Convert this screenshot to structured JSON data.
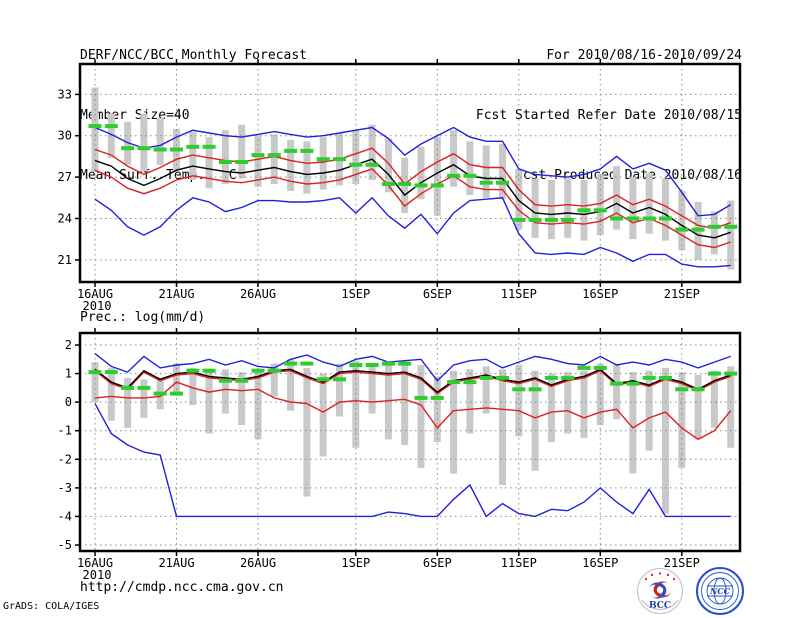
{
  "header": {
    "title": "DERF/NCC/BCC Monthly Forecast",
    "member_size": "Member Size=40",
    "for_range": "For 2010/08/16-2010/09/24",
    "refer_date": "Fcst Started Refer Date 2010/08/15",
    "produced_date": "Fcst Produced Date 2010/08/16"
  },
  "footer": {
    "url": "http://cmdp.ncc.cma.gov.cn",
    "grads_credit": "GrADS: COLA/IGES",
    "bcc_label": "BCC",
    "ncc_label": "NCC"
  },
  "colors": {
    "blue": "#2020dd",
    "red": "#dd2020",
    "black": "#000000",
    "green": "#2ecc2e",
    "bar_gray": "#c9c9c9",
    "grid_gray": "#8a8a8a",
    "frame": "#000000",
    "logo_navy": "#1a3f9e",
    "logo_red": "#cc2222"
  },
  "chart_data": [
    {
      "type": "line",
      "name": "mean-surface-temperature",
      "title": "Mean Surf. Temp.: °C",
      "x_sub_label": "2010",
      "x_tick_labels": [
        "16AUG",
        "21AUG",
        "26AUG",
        "1SEP",
        "6SEP",
        "11SEP",
        "16SEP",
        "21SEP"
      ],
      "x_tick_positions": [
        0,
        5,
        10,
        16,
        21,
        26,
        31,
        36
      ],
      "n_points": 40,
      "ylim": [
        19.4,
        35.2
      ],
      "y_ticks": [
        21,
        24,
        27,
        30,
        33
      ],
      "y_tick_labels": [
        "21",
        "24",
        "27",
        "30",
        "33"
      ],
      "grid": true,
      "legend": "none",
      "series": [
        {
          "name": "upper-spread",
          "color": "red",
          "values": [
            29.0,
            28.6,
            27.8,
            27.2,
            27.7,
            28.3,
            28.6,
            28.4,
            28.2,
            28.1,
            28.3,
            28.5,
            28.2,
            28.0,
            28.1,
            28.3,
            28.7,
            29.1,
            28.0,
            26.5,
            27.4,
            28.1,
            28.7,
            27.9,
            27.7,
            27.7,
            26.1,
            25.0,
            24.9,
            25.0,
            24.9,
            25.1,
            25.7,
            25.0,
            25.4,
            24.9,
            24.2,
            23.5,
            23.3,
            23.7
          ]
        },
        {
          "name": "lower-spread",
          "color": "red",
          "values": [
            27.5,
            27.0,
            26.2,
            25.8,
            26.2,
            26.8,
            27.1,
            26.9,
            26.7,
            26.6,
            26.8,
            27.0,
            26.7,
            26.5,
            26.6,
            26.8,
            27.2,
            27.6,
            26.4,
            24.9,
            25.8,
            26.5,
            27.1,
            26.3,
            26.1,
            26.1,
            24.6,
            23.7,
            23.6,
            23.7,
            23.6,
            23.8,
            24.4,
            23.7,
            24.0,
            23.5,
            22.8,
            22.1,
            21.9,
            22.3
          ]
        },
        {
          "name": "ensemble-max",
          "color": "blue",
          "values": [
            30.6,
            30.1,
            29.5,
            29.1,
            29.3,
            29.9,
            30.4,
            30.2,
            30.0,
            29.9,
            30.1,
            30.3,
            30.1,
            29.9,
            30.0,
            30.2,
            30.4,
            30.6,
            29.8,
            28.6,
            29.4,
            30.0,
            30.6,
            29.9,
            29.6,
            29.6,
            27.6,
            27.2,
            27.1,
            27.0,
            27.2,
            27.6,
            28.5,
            27.6,
            28.0,
            27.5,
            25.9,
            24.2,
            24.3,
            25.0
          ]
        },
        {
          "name": "ensemble-min",
          "color": "blue",
          "values": [
            25.4,
            24.6,
            23.4,
            22.8,
            23.4,
            24.6,
            25.5,
            25.2,
            24.5,
            24.8,
            25.3,
            25.3,
            25.2,
            25.2,
            25.3,
            25.5,
            24.4,
            25.5,
            24.2,
            23.3,
            24.3,
            22.9,
            24.4,
            25.3,
            25.4,
            25.5,
            22.9,
            21.5,
            21.4,
            21.5,
            21.4,
            21.9,
            21.5,
            20.9,
            21.4,
            21.4,
            20.7,
            20.5,
            20.5,
            20.6
          ]
        },
        {
          "name": "ensemble-mean",
          "color": "black",
          "values": [
            28.2,
            27.8,
            26.9,
            26.4,
            26.9,
            27.5,
            27.8,
            27.6,
            27.4,
            27.3,
            27.5,
            27.7,
            27.4,
            27.2,
            27.3,
            27.5,
            27.9,
            28.3,
            27.2,
            25.7,
            26.6,
            27.3,
            27.9,
            27.1,
            26.9,
            26.9,
            25.3,
            24.4,
            24.3,
            24.4,
            24.3,
            24.5,
            25.1,
            24.4,
            24.8,
            24.3,
            23.5,
            22.8,
            22.6,
            23.0
          ]
        },
        {
          "name": "observation",
          "color": "green",
          "style": "dash",
          "values": [
            30.7,
            30.7,
            29.1,
            29.1,
            29.0,
            29.0,
            29.2,
            29.2,
            28.1,
            28.1,
            28.6,
            28.6,
            28.9,
            28.9,
            28.3,
            28.3,
            27.9,
            27.9,
            26.5,
            26.5,
            26.4,
            26.4,
            27.1,
            27.1,
            26.6,
            26.6,
            23.9,
            23.9,
            23.9,
            23.9,
            24.6,
            24.6,
            24.0,
            24.0,
            24.0,
            24.0,
            23.2,
            23.2,
            23.4,
            23.4
          ]
        }
      ],
      "bars": [
        [
          27.4,
          33.5
        ],
        [
          28.4,
          31.6
        ],
        [
          27.9,
          31.0
        ],
        [
          27.4,
          31.6
        ],
        [
          27.9,
          31.3
        ],
        [
          27.5,
          30.5
        ],
        [
          26.8,
          30.3
        ],
        [
          26.2,
          29.9
        ],
        [
          26.5,
          30.4
        ],
        [
          26.9,
          30.8
        ],
        [
          26.3,
          30.0
        ],
        [
          26.5,
          30.1
        ],
        [
          26.0,
          29.7
        ],
        [
          25.8,
          29.6
        ],
        [
          26.1,
          29.9
        ],
        [
          26.4,
          30.2
        ],
        [
          26.5,
          30.4
        ],
        [
          26.8,
          30.8
        ],
        [
          25.9,
          29.8
        ],
        [
          24.4,
          28.4
        ],
        [
          25.4,
          29.2
        ],
        [
          24.2,
          29.9
        ],
        [
          26.3,
          30.4
        ],
        [
          25.7,
          29.6
        ],
        [
          25.5,
          29.3
        ],
        [
          25.4,
          29.4
        ],
        [
          23.2,
          27.6
        ],
        [
          22.6,
          26.9
        ],
        [
          22.5,
          26.8
        ],
        [
          22.6,
          26.9
        ],
        [
          22.4,
          26.8
        ],
        [
          22.8,
          27.2
        ],
        [
          23.2,
          27.8
        ],
        [
          22.5,
          27.0
        ],
        [
          22.9,
          27.3
        ],
        [
          22.4,
          26.9
        ],
        [
          21.7,
          26.0
        ],
        [
          21.0,
          25.2
        ],
        [
          21.4,
          24.5
        ],
        [
          20.3,
          25.3
        ]
      ]
    },
    {
      "type": "line",
      "name": "precipitation",
      "title": "Prec.: log(mm/d)",
      "x_sub_label": "2010",
      "x_tick_labels": [
        "16AUG",
        "21AUG",
        "26AUG",
        "1SEP",
        "6SEP",
        "11SEP",
        "16SEP",
        "21SEP"
      ],
      "x_tick_positions": [
        0,
        5,
        10,
        16,
        21,
        26,
        31,
        36
      ],
      "n_points": 40,
      "ylim": [
        -5.21,
        2.42
      ],
      "y_ticks": [
        2,
        1,
        0,
        -1,
        -2,
        -3,
        -4,
        -5
      ],
      "y_tick_labels": [
        "2",
        "1",
        "0",
        "-1",
        "-2",
        "-3",
        "-4",
        "-5"
      ],
      "grid": true,
      "legend": "none",
      "series": [
        {
          "name": "upper-spread",
          "color": "red",
          "values": [
            1.1,
            0.65,
            0.45,
            1.05,
            0.75,
            0.95,
            1.0,
            0.85,
            0.8,
            0.75,
            0.85,
            1.05,
            1.1,
            0.85,
            0.65,
            1.0,
            1.05,
            1.0,
            0.95,
            1.0,
            0.8,
            0.3,
            0.7,
            0.8,
            0.9,
            0.75,
            0.65,
            0.8,
            0.55,
            0.75,
            0.85,
            1.1,
            0.6,
            0.7,
            0.55,
            0.8,
            0.65,
            0.4,
            0.7,
            0.9
          ]
        },
        {
          "name": "lower-spread",
          "color": "red",
          "values": [
            0.15,
            0.2,
            0.15,
            0.15,
            0.2,
            0.7,
            0.5,
            0.35,
            0.45,
            0.4,
            0.45,
            0.15,
            0.0,
            -0.05,
            -0.35,
            0.0,
            0.05,
            0.0,
            0.05,
            0.1,
            -0.1,
            -0.9,
            -0.3,
            -0.25,
            -0.2,
            -0.25,
            -0.3,
            -0.55,
            -0.35,
            -0.3,
            -0.55,
            -0.35,
            -0.25,
            -0.9,
            -0.55,
            -0.35,
            -0.9,
            -1.3,
            -1.0,
            -0.3
          ]
        },
        {
          "name": "ensemble-max",
          "color": "blue",
          "values": [
            1.7,
            1.25,
            1.05,
            1.6,
            1.2,
            1.3,
            1.35,
            1.5,
            1.3,
            1.45,
            1.25,
            1.2,
            1.5,
            1.65,
            1.4,
            1.25,
            1.5,
            1.6,
            1.4,
            1.45,
            1.5,
            0.75,
            1.3,
            1.45,
            1.5,
            1.2,
            1.4,
            1.6,
            1.5,
            1.35,
            1.3,
            1.6,
            1.3,
            1.4,
            1.3,
            1.5,
            1.4,
            1.2,
            1.4,
            1.6
          ]
        },
        {
          "name": "ensemble-min",
          "color": "blue",
          "values": [
            -0.05,
            -1.1,
            -1.5,
            -1.75,
            -1.85,
            -4.0,
            -4.0,
            -4.0,
            -4.0,
            -4.0,
            -4.0,
            -4.0,
            -4.0,
            -4.0,
            -4.0,
            -4.0,
            -4.0,
            -4.0,
            -3.85,
            -3.9,
            -4.0,
            -4.0,
            -3.4,
            -2.9,
            -4.0,
            -3.55,
            -3.9,
            -4.0,
            -3.75,
            -3.8,
            -3.5,
            -3.0,
            -3.5,
            -3.9,
            -3.05,
            -4.0,
            -4.0,
            -4.0,
            -4.0,
            -4.0
          ]
        },
        {
          "name": "ensemble-mean",
          "color": "black",
          "values": [
            1.15,
            0.7,
            0.5,
            1.1,
            0.8,
            1.0,
            1.05,
            0.9,
            0.85,
            0.8,
            0.9,
            1.1,
            1.15,
            0.9,
            0.7,
            1.05,
            1.1,
            1.05,
            1.0,
            1.05,
            0.85,
            0.35,
            0.75,
            0.85,
            0.95,
            0.8,
            0.7,
            0.85,
            0.6,
            0.8,
            0.9,
            1.15,
            0.65,
            0.75,
            0.6,
            0.85,
            0.7,
            0.45,
            0.75,
            0.95
          ]
        },
        {
          "name": "observation",
          "color": "green",
          "style": "dash",
          "values": [
            1.05,
            1.05,
            0.5,
            0.5,
            0.3,
            0.3,
            1.1,
            1.1,
            0.75,
            0.75,
            1.1,
            1.1,
            1.35,
            1.35,
            0.8,
            0.8,
            1.3,
            1.3,
            1.35,
            1.35,
            0.15,
            0.15,
            0.7,
            0.7,
            0.85,
            0.85,
            0.45,
            0.45,
            0.85,
            0.85,
            1.2,
            1.2,
            0.65,
            0.65,
            0.85,
            0.85,
            0.45,
            0.45,
            1.0,
            1.0
          ]
        }
      ],
      "bars": [
        [
          0.0,
          1.4
        ],
        [
          -0.65,
          1.2
        ],
        [
          -0.9,
          0.85
        ],
        [
          -0.55,
          0.8
        ],
        [
          -0.25,
          0.85
        ],
        [
          0.3,
          1.35
        ],
        [
          -0.1,
          1.2
        ],
        [
          -1.1,
          1.1
        ],
        [
          -0.4,
          1.15
        ],
        [
          -0.8,
          1.05
        ],
        [
          -1.3,
          1.05
        ],
        [
          0.2,
          1.35
        ],
        [
          -0.3,
          1.5
        ],
        [
          -3.3,
          1.2
        ],
        [
          -1.9,
          1.0
        ],
        [
          -0.5,
          1.35
        ],
        [
          -1.6,
          1.45
        ],
        [
          -0.4,
          1.3
        ],
        [
          -1.3,
          1.3
        ],
        [
          -1.5,
          1.35
        ],
        [
          -2.3,
          1.3
        ],
        [
          -1.4,
          0.9
        ],
        [
          -2.5,
          1.1
        ],
        [
          -1.1,
          1.15
        ],
        [
          -0.4,
          1.25
        ],
        [
          -2.9,
          1.15
        ],
        [
          -1.2,
          1.3
        ],
        [
          -2.4,
          1.1
        ],
        [
          -1.4,
          1.0
        ],
        [
          -1.1,
          1.05
        ],
        [
          -1.25,
          1.1
        ],
        [
          -0.8,
          1.35
        ],
        [
          -0.6,
          1.3
        ],
        [
          -2.5,
          1.05
        ],
        [
          -1.7,
          1.1
        ],
        [
          -3.9,
          1.2
        ],
        [
          -2.3,
          1.05
        ],
        [
          -1.3,
          0.95
        ],
        [
          -0.9,
          1.1
        ],
        [
          -1.6,
          1.25
        ]
      ]
    }
  ]
}
